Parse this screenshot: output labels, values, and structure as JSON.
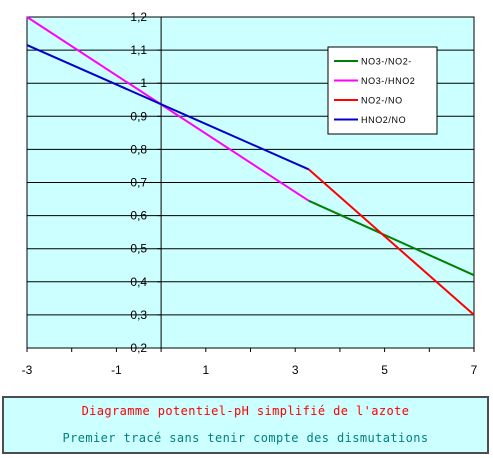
{
  "chart_data": {
    "type": "line",
    "title": "",
    "xlabel": "",
    "ylabel": "",
    "xlim": [
      -3,
      7
    ],
    "ylim": [
      0.2,
      1.2
    ],
    "x_ticks": [
      "-3",
      "-1",
      "1",
      "3",
      "5",
      "7"
    ],
    "y_ticks": [
      "0,2",
      "0,3",
      "0,4",
      "0,5",
      "0,6",
      "0,7",
      "0,8",
      "0,9",
      "1",
      "1,1",
      "1,2"
    ],
    "x_tick_values": [
      -3,
      -1,
      1,
      3,
      5,
      7
    ],
    "y_tick_values": [
      0.2,
      0.3,
      0.4,
      0.5,
      0.6,
      0.7,
      0.8,
      0.9,
      1.0,
      1.1,
      1.2
    ],
    "grid": "horizontal",
    "legend_position": "top-right",
    "plot_background": "#ccffff",
    "series": [
      {
        "name": "NO3-/NO2-",
        "color": "#008000",
        "x": [
          3.3,
          7
        ],
        "y": [
          0.645,
          0.42
        ]
      },
      {
        "name": "NO3-/HNO2",
        "color": "#ff00ff",
        "x": [
          -3,
          3.3
        ],
        "y": [
          1.2,
          0.645
        ]
      },
      {
        "name": "NO2-/NO",
        "color": "#ff0000",
        "x": [
          3.3,
          7
        ],
        "y": [
          0.74,
          0.3
        ]
      },
      {
        "name": "HNO2/NO",
        "color": "#0000cc",
        "x": [
          -3,
          3.3
        ],
        "y": [
          1.115,
          0.74
        ]
      }
    ]
  },
  "caption": {
    "title": "Diagramme potentiel-pH simplifié de l'azote",
    "subtitle": "Premier tracé sans tenir compte des dismutations",
    "title_color": "#ff0000",
    "subtitle_color": "#008080",
    "background": "#ccffff"
  }
}
